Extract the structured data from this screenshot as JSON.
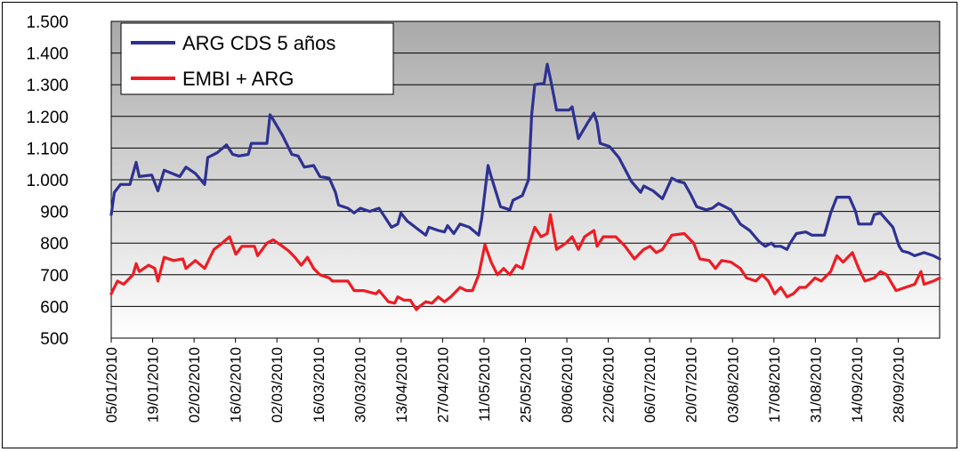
{
  "chart_data": {
    "type": "line",
    "title": "",
    "xlabel": "",
    "ylabel": "",
    "ylim": [
      500,
      1500
    ],
    "yticks": [
      500,
      600,
      700,
      800,
      900,
      1000,
      1100,
      1200,
      1300,
      1400,
      1500
    ],
    "ytick_labels": [
      "500",
      "600",
      "700",
      "800",
      "900",
      "1.000",
      "1.100",
      "1.200",
      "1.300",
      "1.400",
      "1.500"
    ],
    "xlim": [
      "2010-01-05",
      "2010-09-28"
    ],
    "xtick_labels": [
      "05/01/2010",
      "19/01/2010",
      "02/02/2010",
      "16/02/2010",
      "02/03/2010",
      "16/03/2010",
      "30/03/2010",
      "13/04/2010",
      "27/04/2010",
      "11/05/2010",
      "25/05/2010",
      "08/06/2010",
      "22/06/2010",
      "06/07/2010",
      "20/07/2010",
      "03/08/2010",
      "17/08/2010",
      "31/08/2010",
      "14/09/2010",
      "28/09/2010"
    ],
    "grid": true,
    "legend_position": "top-left",
    "series": [
      {
        "name": "ARG CDS 5 años",
        "color": "#2E3192",
        "points": [
          [
            "2010-01-05",
            890
          ],
          [
            "2010-01-06",
            960
          ],
          [
            "2010-01-08",
            985
          ],
          [
            "2010-01-11",
            985
          ],
          [
            "2010-01-13",
            1055
          ],
          [
            "2010-01-14",
            1010
          ],
          [
            "2010-01-18",
            1015
          ],
          [
            "2010-01-20",
            965
          ],
          [
            "2010-01-22",
            1030
          ],
          [
            "2010-01-27",
            1010
          ],
          [
            "2010-01-29",
            1040
          ],
          [
            "2010-02-01",
            1020
          ],
          [
            "2010-02-04",
            985
          ],
          [
            "2010-02-05",
            1070
          ],
          [
            "2010-02-08",
            1085
          ],
          [
            "2010-02-11",
            1110
          ],
          [
            "2010-02-13",
            1080
          ],
          [
            "2010-02-15",
            1075
          ],
          [
            "2010-02-18",
            1080
          ],
          [
            "2010-02-19",
            1115
          ],
          [
            "2010-02-24",
            1115
          ],
          [
            "2010-02-25",
            1205
          ],
          [
            "2010-02-26",
            1190
          ],
          [
            "2010-03-01",
            1140
          ],
          [
            "2010-03-04",
            1080
          ],
          [
            "2010-03-06",
            1075
          ],
          [
            "2010-03-08",
            1040
          ],
          [
            "2010-03-11",
            1045
          ],
          [
            "2010-03-13",
            1010
          ],
          [
            "2010-03-16",
            1005
          ],
          [
            "2010-03-18",
            960
          ],
          [
            "2010-03-19",
            920
          ],
          [
            "2010-03-22",
            910
          ],
          [
            "2010-03-24",
            895
          ],
          [
            "2010-03-26",
            910
          ],
          [
            "2010-03-29",
            900
          ],
          [
            "2010-04-01",
            910
          ],
          [
            "2010-04-03",
            880
          ],
          [
            "2010-04-05",
            850
          ],
          [
            "2010-04-07",
            860
          ],
          [
            "2010-04-08",
            895
          ],
          [
            "2010-04-10",
            870
          ],
          [
            "2010-04-14",
            840
          ],
          [
            "2010-04-16",
            825
          ],
          [
            "2010-04-17",
            850
          ],
          [
            "2010-04-20",
            840
          ],
          [
            "2010-04-22",
            835
          ],
          [
            "2010-04-23",
            855
          ],
          [
            "2010-04-25",
            830
          ],
          [
            "2010-04-27",
            860
          ],
          [
            "2010-04-30",
            850
          ],
          [
            "2010-05-03",
            825
          ],
          [
            "2010-05-04",
            880
          ],
          [
            "2010-05-06",
            1045
          ],
          [
            "2010-05-07",
            1010
          ],
          [
            "2010-05-10",
            915
          ],
          [
            "2010-05-13",
            905
          ],
          [
            "2010-05-14",
            935
          ],
          [
            "2010-05-17",
            950
          ],
          [
            "2010-05-19",
            1000
          ],
          [
            "2010-05-20",
            1205
          ],
          [
            "2010-05-21",
            1300
          ],
          [
            "2010-05-24",
            1305
          ],
          [
            "2010-05-25",
            1365
          ],
          [
            "2010-05-26",
            1320
          ],
          [
            "2010-05-28",
            1220
          ],
          [
            "2010-06-01",
            1220
          ],
          [
            "2010-06-02",
            1230
          ],
          [
            "2010-06-04",
            1130
          ],
          [
            "2010-06-07",
            1180
          ],
          [
            "2010-06-09",
            1210
          ],
          [
            "2010-06-10",
            1180
          ],
          [
            "2010-06-11",
            1115
          ],
          [
            "2010-06-14",
            1105
          ],
          [
            "2010-06-17",
            1070
          ],
          [
            "2010-06-21",
            995
          ],
          [
            "2010-06-24",
            960
          ],
          [
            "2010-06-25",
            980
          ],
          [
            "2010-06-28",
            965
          ],
          [
            "2010-07-01",
            940
          ],
          [
            "2010-07-04",
            1005
          ],
          [
            "2010-07-06",
            995
          ],
          [
            "2010-07-08",
            990
          ],
          [
            "2010-07-10",
            955
          ],
          [
            "2010-07-12",
            915
          ],
          [
            "2010-07-15",
            905
          ],
          [
            "2010-07-17",
            910
          ],
          [
            "2010-07-19",
            925
          ],
          [
            "2010-07-23",
            905
          ],
          [
            "2010-07-26",
            860
          ],
          [
            "2010-07-29",
            840
          ],
          [
            "2010-08-01",
            805
          ],
          [
            "2010-08-03",
            790
          ],
          [
            "2010-08-05",
            800
          ],
          [
            "2010-08-06",
            790
          ],
          [
            "2010-08-08",
            790
          ],
          [
            "2010-08-10",
            780
          ],
          [
            "2010-08-11",
            800
          ],
          [
            "2010-08-13",
            830
          ],
          [
            "2010-08-16",
            835
          ],
          [
            "2010-08-18",
            825
          ],
          [
            "2010-08-22",
            825
          ],
          [
            "2010-08-24",
            895
          ],
          [
            "2010-08-26",
            945
          ],
          [
            "2010-08-30",
            945
          ],
          [
            "2010-09-01",
            900
          ],
          [
            "2010-09-02",
            860
          ],
          [
            "2010-09-06",
            860
          ],
          [
            "2010-09-07",
            890
          ],
          [
            "2010-09-09",
            895
          ],
          [
            "2010-09-13",
            850
          ],
          [
            "2010-09-15",
            790
          ],
          [
            "2010-09-16",
            775
          ],
          [
            "2010-09-18",
            770
          ],
          [
            "2010-09-20",
            760
          ],
          [
            "2010-09-23",
            770
          ],
          [
            "2010-09-26",
            760
          ],
          [
            "2010-09-28",
            750
          ]
        ]
      },
      {
        "name": "EMBI + ARG",
        "color": "#ED1C24",
        "points": [
          [
            "2010-01-05",
            640
          ],
          [
            "2010-01-07",
            680
          ],
          [
            "2010-01-09",
            670
          ],
          [
            "2010-01-12",
            700
          ],
          [
            "2010-01-13",
            735
          ],
          [
            "2010-01-14",
            710
          ],
          [
            "2010-01-17",
            730
          ],
          [
            "2010-01-19",
            720
          ],
          [
            "2010-01-20",
            680
          ],
          [
            "2010-01-22",
            755
          ],
          [
            "2010-01-25",
            745
          ],
          [
            "2010-01-28",
            750
          ],
          [
            "2010-01-29",
            720
          ],
          [
            "2010-02-01",
            745
          ],
          [
            "2010-02-04",
            720
          ],
          [
            "2010-02-07",
            780
          ],
          [
            "2010-02-09",
            795
          ],
          [
            "2010-02-12",
            820
          ],
          [
            "2010-02-14",
            765
          ],
          [
            "2010-02-16",
            790
          ],
          [
            "2010-02-20",
            790
          ],
          [
            "2010-02-21",
            760
          ],
          [
            "2010-02-24",
            800
          ],
          [
            "2010-02-26",
            810
          ],
          [
            "2010-03-01",
            790
          ],
          [
            "2010-03-03",
            775
          ],
          [
            "2010-03-05",
            755
          ],
          [
            "2010-03-07",
            730
          ],
          [
            "2010-03-09",
            755
          ],
          [
            "2010-03-11",
            720
          ],
          [
            "2010-03-13",
            700
          ],
          [
            "2010-03-16",
            690
          ],
          [
            "2010-03-17",
            680
          ],
          [
            "2010-03-22",
            680
          ],
          [
            "2010-03-24",
            650
          ],
          [
            "2010-03-27",
            650
          ],
          [
            "2010-03-31",
            640
          ],
          [
            "2010-04-01",
            650
          ],
          [
            "2010-04-04",
            615
          ],
          [
            "2010-04-06",
            610
          ],
          [
            "2010-04-07",
            630
          ],
          [
            "2010-04-09",
            620
          ],
          [
            "2010-04-11",
            620
          ],
          [
            "2010-04-13",
            590
          ],
          [
            "2010-04-14",
            600
          ],
          [
            "2010-04-16",
            615
          ],
          [
            "2010-04-18",
            610
          ],
          [
            "2010-04-20",
            630
          ],
          [
            "2010-04-22",
            615
          ],
          [
            "2010-04-24",
            630
          ],
          [
            "2010-04-27",
            660
          ],
          [
            "2010-04-29",
            650
          ],
          [
            "2010-05-01",
            650
          ],
          [
            "2010-05-03",
            700
          ],
          [
            "2010-05-05",
            795
          ],
          [
            "2010-05-07",
            740
          ],
          [
            "2010-05-09",
            700
          ],
          [
            "2010-05-11",
            720
          ],
          [
            "2010-05-13",
            700
          ],
          [
            "2010-05-15",
            730
          ],
          [
            "2010-05-17",
            720
          ],
          [
            "2010-05-19",
            790
          ],
          [
            "2010-05-21",
            850
          ],
          [
            "2010-05-23",
            820
          ],
          [
            "2010-05-25",
            830
          ],
          [
            "2010-05-26",
            890
          ],
          [
            "2010-05-28",
            780
          ],
          [
            "2010-05-31",
            800
          ],
          [
            "2010-06-02",
            820
          ],
          [
            "2010-06-04",
            780
          ],
          [
            "2010-06-06",
            820
          ],
          [
            "2010-06-09",
            840
          ],
          [
            "2010-06-10",
            790
          ],
          [
            "2010-06-12",
            820
          ],
          [
            "2010-06-16",
            820
          ],
          [
            "2010-06-19",
            790
          ],
          [
            "2010-06-22",
            750
          ],
          [
            "2010-06-25",
            780
          ],
          [
            "2010-06-27",
            790
          ],
          [
            "2010-06-29",
            770
          ],
          [
            "2010-07-01",
            780
          ],
          [
            "2010-07-04",
            825
          ],
          [
            "2010-07-08",
            830
          ],
          [
            "2010-07-11",
            800
          ],
          [
            "2010-07-13",
            750
          ],
          [
            "2010-07-16",
            745
          ],
          [
            "2010-07-18",
            720
          ],
          [
            "2010-07-20",
            745
          ],
          [
            "2010-07-23",
            740
          ],
          [
            "2010-07-26",
            720
          ],
          [
            "2010-07-28",
            690
          ],
          [
            "2010-07-31",
            680
          ],
          [
            "2010-08-02",
            700
          ],
          [
            "2010-08-04",
            680
          ],
          [
            "2010-08-06",
            640
          ],
          [
            "2010-08-08",
            660
          ],
          [
            "2010-08-10",
            630
          ],
          [
            "2010-08-12",
            640
          ],
          [
            "2010-08-14",
            660
          ],
          [
            "2010-08-16",
            660
          ],
          [
            "2010-08-19",
            690
          ],
          [
            "2010-08-21",
            680
          ],
          [
            "2010-08-24",
            710
          ],
          [
            "2010-08-26",
            760
          ],
          [
            "2010-08-28",
            740
          ],
          [
            "2010-08-31",
            770
          ],
          [
            "2010-09-02",
            720
          ],
          [
            "2010-09-04",
            680
          ],
          [
            "2010-09-07",
            690
          ],
          [
            "2010-09-09",
            710
          ],
          [
            "2010-09-11",
            700
          ],
          [
            "2010-09-14",
            650
          ],
          [
            "2010-09-17",
            660
          ],
          [
            "2010-09-20",
            670
          ],
          [
            "2010-09-22",
            710
          ],
          [
            "2010-09-23",
            670
          ],
          [
            "2010-09-26",
            680
          ],
          [
            "2010-09-28",
            690
          ]
        ]
      }
    ]
  }
}
